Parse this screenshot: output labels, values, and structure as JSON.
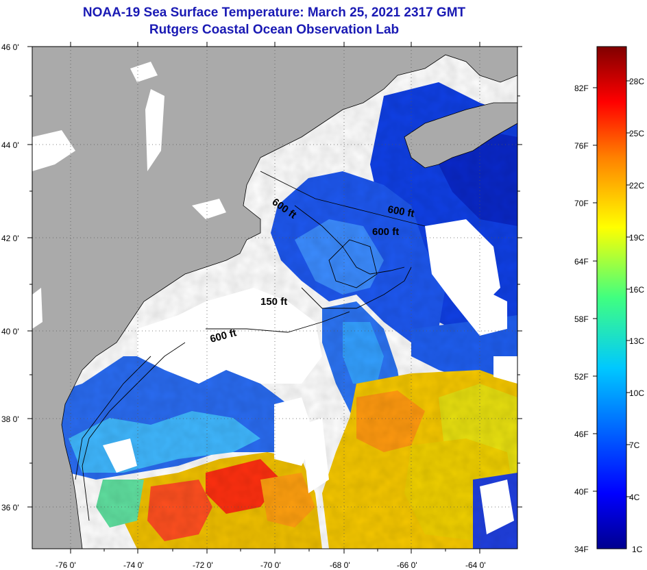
{
  "header": {
    "title": "NOAA-19 Sea Surface Temperature:  March 25, 2021 2317 GMT",
    "subtitle": "Rutgers Coastal Ocean Observation Lab"
  },
  "axes": {
    "lat_labels": [
      "46 0'",
      "44 0'",
      "42 0'",
      "40 0'",
      "38 0'",
      "36 0'"
    ],
    "lon_labels": [
      "-76 0'",
      "-74 0'",
      "-72 0'",
      "-70 0'",
      "-68 0'",
      "-66 0'",
      "-64 0'"
    ]
  },
  "contours": [
    {
      "label": "600 ft"
    },
    {
      "label": "600 ft"
    },
    {
      "label": "600 ft"
    },
    {
      "label": "150 ft"
    },
    {
      "label": "600 ft"
    }
  ],
  "colorbar": {
    "fahrenheit": [
      "82F",
      "76F",
      "70F",
      "64F",
      "58F",
      "52F",
      "46F",
      "40F",
      "34F"
    ],
    "celsius": [
      "28C",
      "25C",
      "22C",
      "19C",
      "16C",
      "13C",
      "10C",
      "7C",
      "4C",
      "1C"
    ]
  },
  "colors": {
    "land": "#aaaaaa",
    "cloud": "#ffffff",
    "title": "#1a1ab4"
  }
}
